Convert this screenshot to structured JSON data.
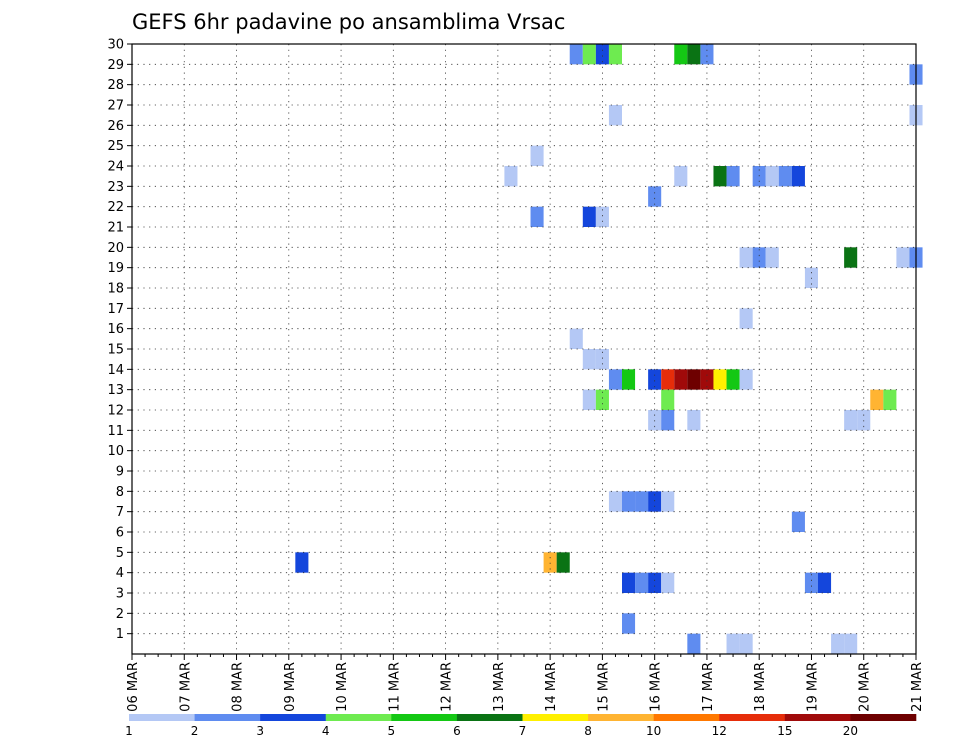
{
  "chart_data": {
    "type": "heatmap",
    "title": "GEFS 6hr padavine po ansamblima Vrsac",
    "xlabel": "",
    "ylabel": "",
    "x_tick_labels": [
      "06 MAR",
      "07 MAR",
      "08 MAR",
      "09 MAR",
      "10 MAR",
      "11 MAR",
      "12 MAR",
      "13 MAR",
      "14 MAR",
      "15 MAR",
      "16 MAR",
      "17 MAR",
      "18 MAR",
      "19 MAR",
      "20 MAR",
      "21 MAR"
    ],
    "y_tick_labels": [
      "1",
      "2",
      "3",
      "4",
      "5",
      "6",
      "7",
      "8",
      "9",
      "10",
      "11",
      "12",
      "13",
      "14",
      "15",
      "16",
      "17",
      "18",
      "19",
      "20",
      "21",
      "22",
      "23",
      "24",
      "25",
      "26",
      "27",
      "28",
      "29",
      "30"
    ],
    "xlim_steps": [
      0,
      60
    ],
    "ylim": [
      0,
      30
    ],
    "step_hours": 6,
    "grid": true,
    "colorbar": {
      "labels": [
        "1",
        "2",
        "3",
        "4",
        "5",
        "6",
        "7",
        "8",
        "10",
        "12",
        "15",
        "20"
      ],
      "colors": [
        "#b4c8f5",
        "#5f8cf0",
        "#1446dc",
        "#6eeb50",
        "#14c814",
        "#0a7314",
        "#fff000",
        "#ffb432",
        "#ff7800",
        "#e62d0a",
        "#a00a0a",
        "#6e0000"
      ]
    },
    "cells": [
      {
        "x": 34,
        "y": 30,
        "c": 1
      },
      {
        "x": 35,
        "y": 30,
        "c": 3
      },
      {
        "x": 36,
        "y": 30,
        "c": 2
      },
      {
        "x": 37,
        "y": 30,
        "c": 3
      },
      {
        "x": 42,
        "y": 30,
        "c": 4
      },
      {
        "x": 43,
        "y": 30,
        "c": 5
      },
      {
        "x": 44,
        "y": 30,
        "c": 1
      },
      {
        "x": 60,
        "y": 29,
        "c": 1
      },
      {
        "x": 37,
        "y": 27,
        "c": 0
      },
      {
        "x": 60,
        "y": 27,
        "c": 0
      },
      {
        "x": 31,
        "y": 25,
        "c": 0
      },
      {
        "x": 29,
        "y": 24,
        "c": 0
      },
      {
        "x": 42,
        "y": 24,
        "c": 0
      },
      {
        "x": 45,
        "y": 24,
        "c": 5
      },
      {
        "x": 46,
        "y": 24,
        "c": 1
      },
      {
        "x": 48,
        "y": 24,
        "c": 1
      },
      {
        "x": 49,
        "y": 24,
        "c": 0
      },
      {
        "x": 50,
        "y": 24,
        "c": 1
      },
      {
        "x": 51,
        "y": 24,
        "c": 2
      },
      {
        "x": 40,
        "y": 23,
        "c": 1
      },
      {
        "x": 31,
        "y": 22,
        "c": 1
      },
      {
        "x": 35,
        "y": 22,
        "c": 2
      },
      {
        "x": 36,
        "y": 22,
        "c": 0
      },
      {
        "x": 47,
        "y": 20,
        "c": 0
      },
      {
        "x": 48,
        "y": 20,
        "c": 1
      },
      {
        "x": 49,
        "y": 20,
        "c": 0
      },
      {
        "x": 55,
        "y": 20,
        "c": 5
      },
      {
        "x": 59,
        "y": 20,
        "c": 0
      },
      {
        "x": 60,
        "y": 20,
        "c": 1
      },
      {
        "x": 52,
        "y": 19,
        "c": 0
      },
      {
        "x": 47,
        "y": 17,
        "c": 0
      },
      {
        "x": 34,
        "y": 16,
        "c": 0
      },
      {
        "x": 35,
        "y": 15,
        "c": 0
      },
      {
        "x": 36,
        "y": 15,
        "c": 0
      },
      {
        "x": 37,
        "y": 14,
        "c": 1
      },
      {
        "x": 38,
        "y": 14,
        "c": 4
      },
      {
        "x": 40,
        "y": 14,
        "c": 2
      },
      {
        "x": 41,
        "y": 14,
        "c": 9
      },
      {
        "x": 42,
        "y": 14,
        "c": 10
      },
      {
        "x": 43,
        "y": 14,
        "c": 11
      },
      {
        "x": 44,
        "y": 14,
        "c": 10
      },
      {
        "x": 45,
        "y": 14,
        "c": 6
      },
      {
        "x": 46,
        "y": 14,
        "c": 4
      },
      {
        "x": 47,
        "y": 14,
        "c": 0
      },
      {
        "x": 35,
        "y": 13,
        "c": 0
      },
      {
        "x": 36,
        "y": 13,
        "c": 3
      },
      {
        "x": 41,
        "y": 13,
        "c": 3
      },
      {
        "x": 57,
        "y": 13,
        "c": 7
      },
      {
        "x": 58,
        "y": 13,
        "c": 3
      },
      {
        "x": 40,
        "y": 12,
        "c": 0
      },
      {
        "x": 41,
        "y": 12,
        "c": 1
      },
      {
        "x": 43,
        "y": 12,
        "c": 0
      },
      {
        "x": 55,
        "y": 12,
        "c": 0
      },
      {
        "x": 56,
        "y": 12,
        "c": 0
      },
      {
        "x": 37,
        "y": 8,
        "c": 0
      },
      {
        "x": 38,
        "y": 8,
        "c": 1
      },
      {
        "x": 39,
        "y": 8,
        "c": 1
      },
      {
        "x": 40,
        "y": 8,
        "c": 2
      },
      {
        "x": 41,
        "y": 8,
        "c": 0
      },
      {
        "x": 51,
        "y": 7,
        "c": 1
      },
      {
        "x": 13,
        "y": 5,
        "c": 2
      },
      {
        "x": 32,
        "y": 5,
        "c": 7
      },
      {
        "x": 33,
        "y": 5,
        "c": 5
      },
      {
        "x": 38,
        "y": 4,
        "c": 2
      },
      {
        "x": 39,
        "y": 4,
        "c": 1
      },
      {
        "x": 40,
        "y": 4,
        "c": 2
      },
      {
        "x": 41,
        "y": 4,
        "c": 0
      },
      {
        "x": 52,
        "y": 4,
        "c": 1
      },
      {
        "x": 53,
        "y": 4,
        "c": 2
      },
      {
        "x": 38,
        "y": 2,
        "c": 1
      },
      {
        "x": 43,
        "y": 1,
        "c": 1
      },
      {
        "x": 46,
        "y": 1,
        "c": 0
      },
      {
        "x": 47,
        "y": 1,
        "c": 0
      },
      {
        "x": 54,
        "y": 1,
        "c": 0
      },
      {
        "x": 55,
        "y": 1,
        "c": 0
      }
    ]
  }
}
